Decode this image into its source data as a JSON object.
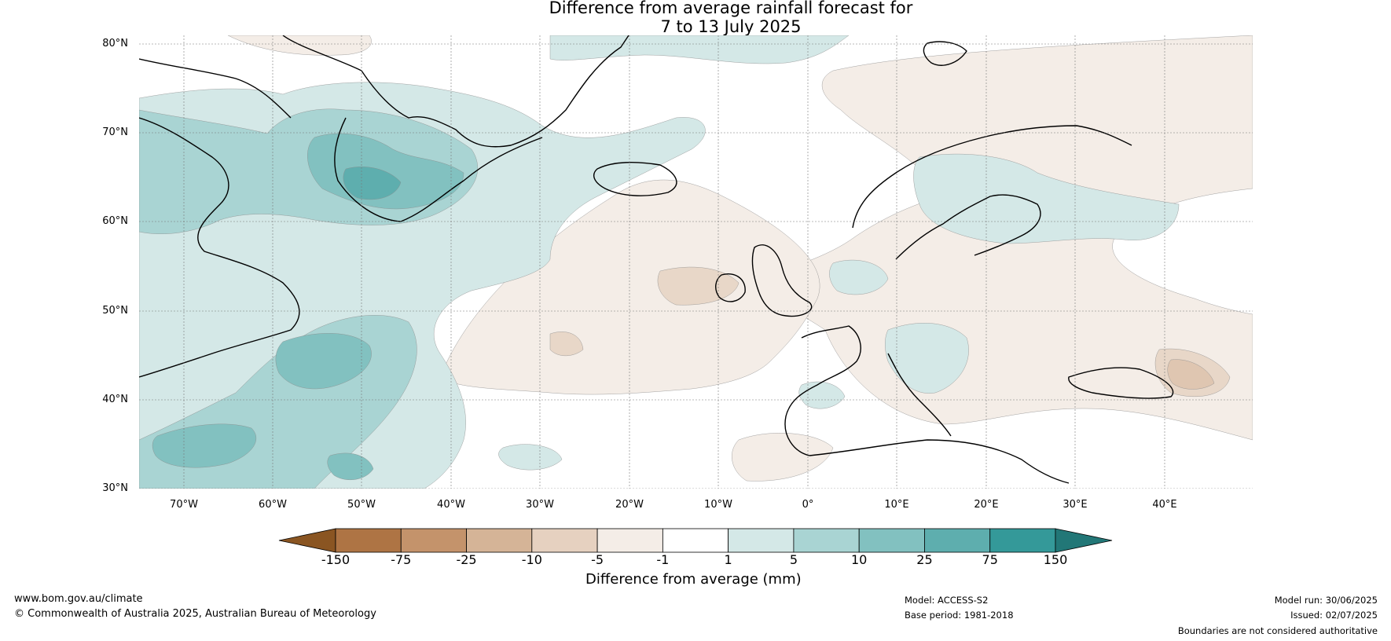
{
  "title": {
    "line1": "Difference from average rainfall forecast for",
    "line2": "7 to 13 July 2025"
  },
  "map": {
    "lat_labels": [
      "80°N",
      "70°N",
      "60°N",
      "50°N",
      "40°N",
      "30°N"
    ],
    "lon_labels": [
      "70°W",
      "60°W",
      "50°W",
      "40°W",
      "30°W",
      "20°W",
      "10°W",
      "0°",
      "10°E",
      "20°E",
      "30°E",
      "40°E"
    ],
    "colors": {
      "dry3": "#dfc6b1",
      "dry2": "#e8d7c8",
      "dry1": "#f4ede7",
      "wet1": "#d4e8e7",
      "wet2": "#a9d4d3",
      "wet3": "#82c1c0",
      "wet4": "#5eaeae"
    }
  },
  "colorbar": {
    "ticks": [
      "-150",
      "-75",
      "-25",
      "-10",
      "-5",
      "-1",
      "1",
      "5",
      "10",
      "25",
      "75",
      "150"
    ],
    "colors": [
      "#8a5522",
      "#ae7444",
      "#c4936b",
      "#d5b497",
      "#e6d1c0",
      "#f4ede7",
      "#ffffff",
      "#d4e8e7",
      "#a9d4d3",
      "#82c1c0",
      "#5eaeae",
      "#349999",
      "#227777"
    ],
    "label": "Difference from average (mm)"
  },
  "footer": {
    "url": "www.bom.gov.au/climate",
    "copyright": "© Commonwealth of Australia 2025, Australian Bureau of Meteorology",
    "model": "Model: ACCESS-S2",
    "base_period": "Base period: 1981-2018",
    "model_run": "Model run: 30/06/2025",
    "issued": "Issued: 02/07/2025",
    "disclaimer": "Boundaries are not considered authoritative"
  }
}
